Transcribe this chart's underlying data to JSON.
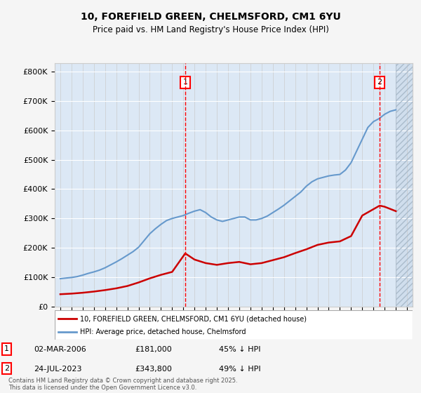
{
  "title": "10, FOREFIELD GREEN, CHELMSFORD, CM1 6YU",
  "subtitle": "Price paid vs. HM Land Registry's House Price Index (HPI)",
  "footnote": "Contains HM Land Registry data © Crown copyright and database right 2025.\nThis data is licensed under the Open Government Licence v3.0.",
  "legend_entry1": "10, FOREFIELD GREEN, CHELMSFORD, CM1 6YU (detached house)",
  "legend_entry2": "HPI: Average price, detached house, Chelmsford",
  "marker1_label": "1",
  "marker1_date": "02-MAR-2006",
  "marker1_price": "£181,000",
  "marker1_hpi": "45% ↓ HPI",
  "marker1_x": 2006.17,
  "marker1_y": 181000,
  "marker2_label": "2",
  "marker2_date": "24-JUL-2023",
  "marker2_price": "£343,800",
  "marker2_hpi": "49% ↓ HPI",
  "marker2_x": 2023.56,
  "marker2_y": 343800,
  "ylim": [
    0,
    830000
  ],
  "xlim": [
    1994.5,
    2026.5
  ],
  "background_color": "#e8f0f8",
  "plot_bg_color": "#dce8f5",
  "hatch_color": "#c8d8e8",
  "line_color_red": "#cc0000",
  "line_color_blue": "#6699cc",
  "hpi_years": [
    1995,
    1995.5,
    1996,
    1996.5,
    1997,
    1997.5,
    1998,
    1998.5,
    1999,
    1999.5,
    2000,
    2000.5,
    2001,
    2001.5,
    2002,
    2002.5,
    2003,
    2003.5,
    2004,
    2004.5,
    2005,
    2005.5,
    2006,
    2006.5,
    2007,
    2007.5,
    2008,
    2008.5,
    2009,
    2009.5,
    2010,
    2010.5,
    2011,
    2011.5,
    2012,
    2012.5,
    2013,
    2013.5,
    2014,
    2014.5,
    2015,
    2015.5,
    2016,
    2016.5,
    2017,
    2017.5,
    2018,
    2018.5,
    2019,
    2019.5,
    2020,
    2020.5,
    2021,
    2021.5,
    2022,
    2022.5,
    2023,
    2023.5,
    2024,
    2024.5,
    2025
  ],
  "hpi_values": [
    95000,
    97000,
    99000,
    102000,
    107000,
    113000,
    118000,
    124000,
    132000,
    142000,
    152000,
    163000,
    175000,
    187000,
    202000,
    225000,
    248000,
    265000,
    280000,
    293000,
    300000,
    305000,
    310000,
    318000,
    325000,
    330000,
    320000,
    305000,
    295000,
    290000,
    295000,
    300000,
    305000,
    305000,
    295000,
    295000,
    300000,
    308000,
    320000,
    332000,
    345000,
    360000,
    375000,
    390000,
    410000,
    425000,
    435000,
    440000,
    445000,
    448000,
    450000,
    465000,
    490000,
    530000,
    570000,
    610000,
    630000,
    640000,
    655000,
    665000,
    670000
  ],
  "red_years": [
    1995,
    1996,
    1997,
    1998,
    1999,
    2000,
    2001,
    2002,
    2003,
    2004,
    2005,
    2006.17,
    2007,
    2008,
    2009,
    2010,
    2011,
    2012,
    2013,
    2014,
    2015,
    2016,
    2017,
    2018,
    2019,
    2020,
    2021,
    2022,
    2023.56,
    2024,
    2025
  ],
  "red_values": [
    42000,
    44000,
    47000,
    51000,
    56000,
    62000,
    70000,
    82000,
    96000,
    108000,
    118000,
    181000,
    160000,
    148000,
    142000,
    148000,
    152000,
    144000,
    148000,
    158000,
    168000,
    182000,
    195000,
    210000,
    218000,
    222000,
    240000,
    310000,
    343800,
    340000,
    325000
  ]
}
